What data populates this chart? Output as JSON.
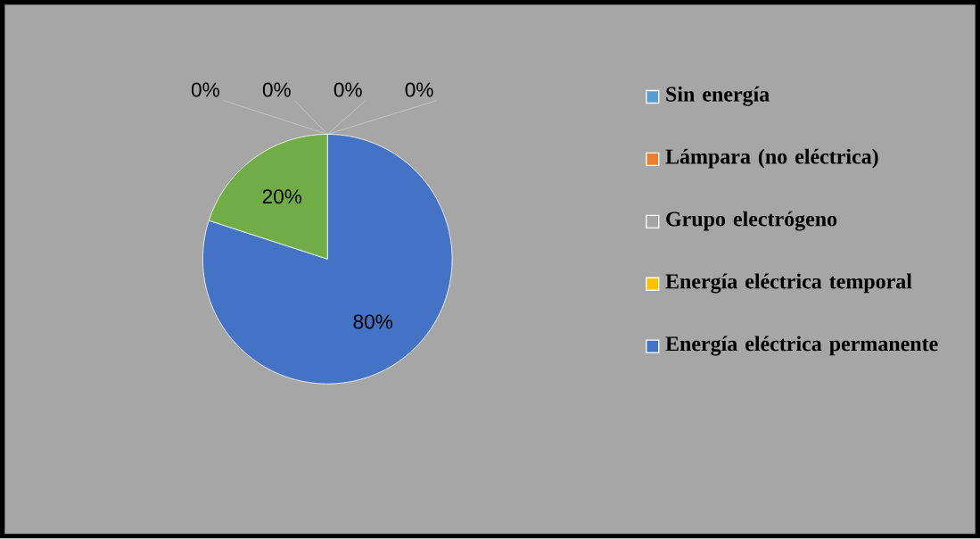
{
  "chart_data": {
    "type": "pie",
    "categories": [
      "Sin energía",
      "Lámpara (no eléctrica)",
      "Grupo electrógeno",
      "Energía eléctrica temporal",
      "Energía eléctrica permanente",
      null
    ],
    "values": [
      0,
      0,
      0,
      0,
      80,
      20
    ],
    "colors": [
      "#5b9bd5",
      "#ed7d31",
      "#a5a5a5",
      "#ffc000",
      "#4472c4",
      "#70ad47"
    ],
    "value_labels": [
      "0%",
      "0%",
      "0%",
      "0%",
      "80%",
      "20%"
    ],
    "legend": "right"
  }
}
